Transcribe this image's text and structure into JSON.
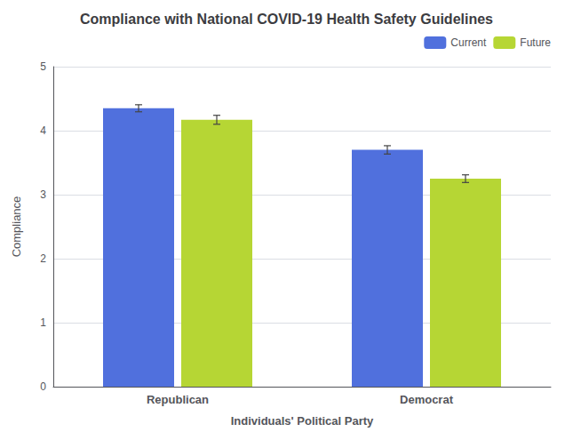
{
  "chart_data": {
    "type": "bar",
    "title": "Compliance with National COVID-19 Health Safety Guidelines",
    "xlabel": "Individuals' Political Party",
    "ylabel": "Compliance",
    "categories": [
      "Republican",
      "Democrat"
    ],
    "series": [
      {
        "name": "Current",
        "values": [
          4.35,
          3.7
        ],
        "errors": [
          0.055,
          0.065
        ]
      },
      {
        "name": "Future",
        "values": [
          4.17,
          3.25
        ],
        "errors": [
          0.07,
          0.06
        ]
      }
    ],
    "ylim": [
      0,
      5
    ],
    "yticks": [
      0,
      1,
      2,
      3,
      4,
      5
    ],
    "grid": true,
    "legend": "upper right"
  }
}
